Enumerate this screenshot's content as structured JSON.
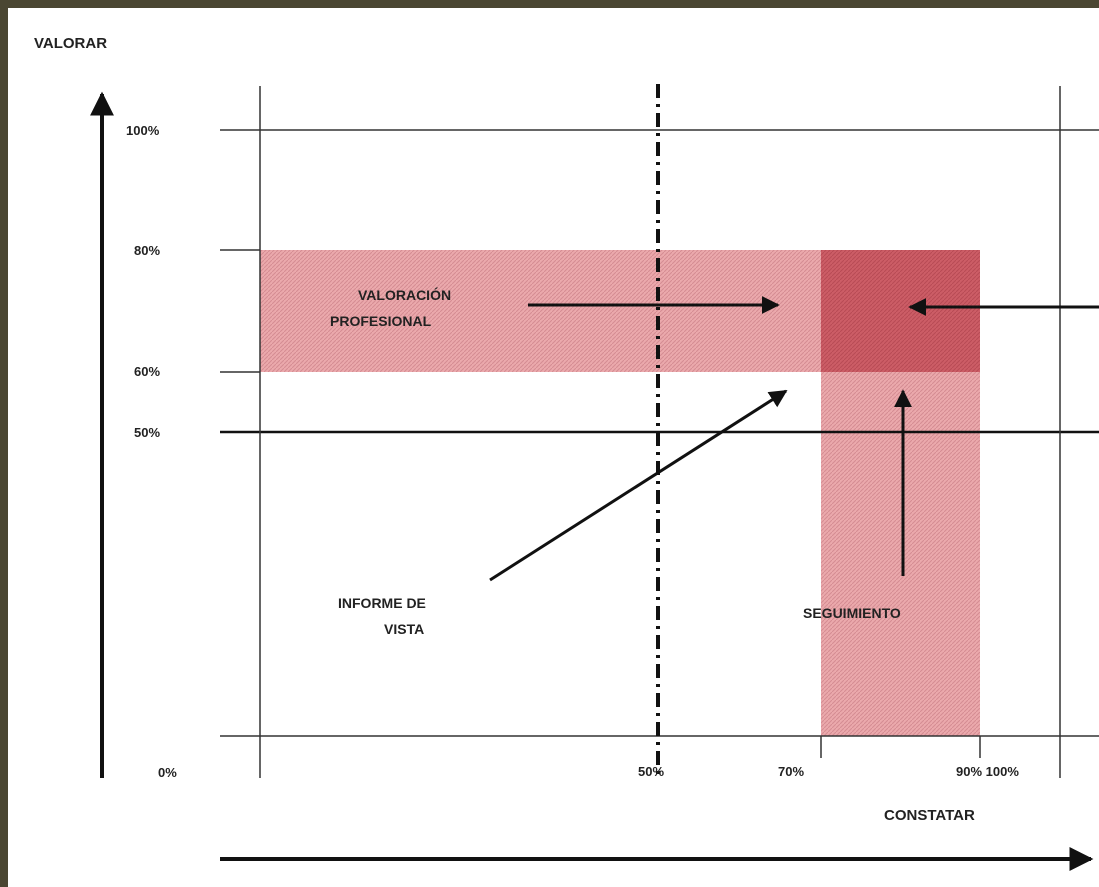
{
  "diagram": {
    "y_axis_label": "VALORAR",
    "x_axis_label": "CONSTATAR",
    "y_ticks": [
      "100%",
      "80%",
      "60%",
      "50%",
      "0%"
    ],
    "x_ticks": [
      "50%",
      "70%",
      "90% 100%"
    ],
    "labels": {
      "valoracion_line1": "VALORACIÓN",
      "valoracion_line2": "PROFESIONAL",
      "informe_line1": "INFORME DE",
      "informe_line2": "VISTA",
      "seguimiento": "SEGUIMIENTO"
    },
    "colors": {
      "background": "#ffffff",
      "frame": "#4a4632",
      "band": "#e8a8ab",
      "overlap": "#c75560",
      "lines": "#111111"
    }
  }
}
